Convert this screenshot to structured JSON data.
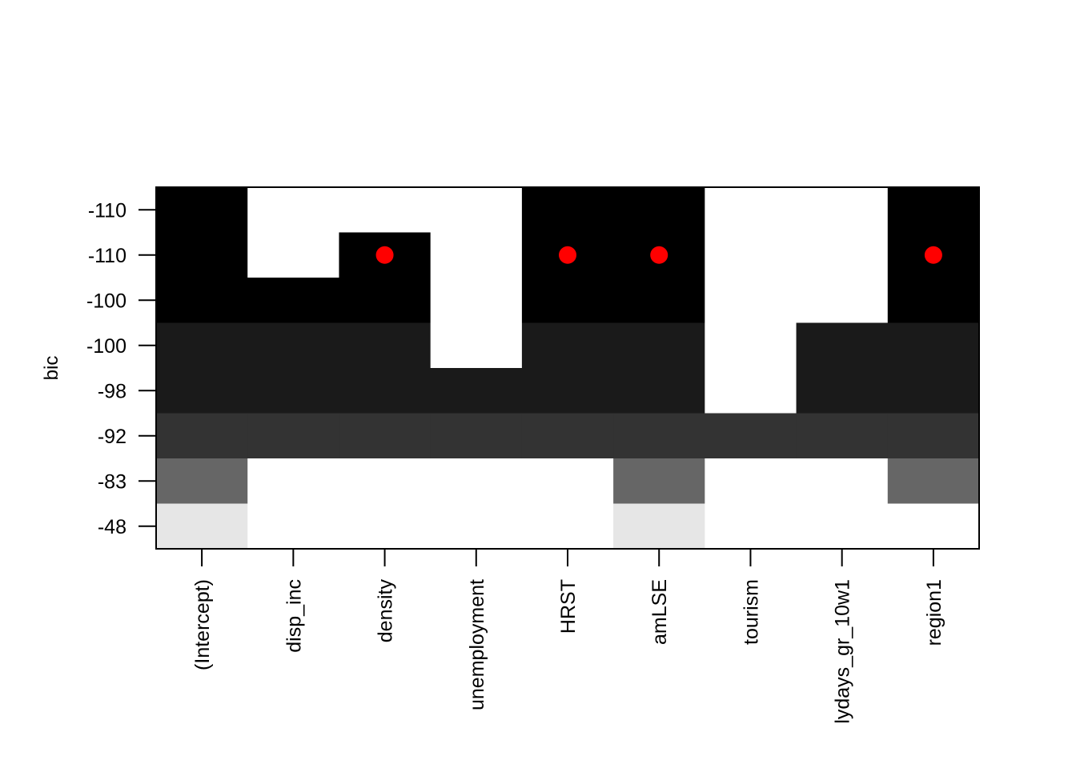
{
  "chart_data": {
    "type": "heatmap",
    "title": "",
    "ylabel": "bic",
    "xlabel": "",
    "variables": [
      "(Intercept)",
      "disp_inc",
      "density",
      "unemployment",
      "HRST",
      "amLSE",
      "tourism",
      "lydays_gr_10w1",
      "region1"
    ],
    "rows_top_to_bottom": [
      "-110",
      "-110",
      "-100",
      "-100",
      "-98",
      "-92",
      "-83",
      "-48"
    ],
    "shade_colors_top_to_bottom": [
      "#000000",
      "#000000",
      "#000000",
      "#1a1a1a",
      "#1a1a1a",
      "#333333",
      "#666666",
      "#e6e6e6"
    ],
    "included": [
      [
        1,
        0,
        0,
        0,
        1,
        1,
        0,
        0,
        1
      ],
      [
        1,
        0,
        1,
        0,
        1,
        1,
        0,
        0,
        1
      ],
      [
        1,
        1,
        1,
        0,
        1,
        1,
        0,
        0,
        1
      ],
      [
        1,
        1,
        1,
        0,
        1,
        1,
        0,
        1,
        1
      ],
      [
        1,
        1,
        1,
        1,
        1,
        1,
        0,
        1,
        1
      ],
      [
        1,
        1,
        1,
        1,
        1,
        1,
        1,
        1,
        1
      ],
      [
        1,
        0,
        0,
        0,
        0,
        1,
        0,
        0,
        1
      ],
      [
        1,
        0,
        0,
        0,
        0,
        1,
        0,
        0,
        0
      ]
    ],
    "markers": {
      "row": 1,
      "columns": [
        2,
        4,
        5,
        8
      ],
      "color": "#ff0000"
    },
    "grid": false,
    "legend": "none"
  }
}
